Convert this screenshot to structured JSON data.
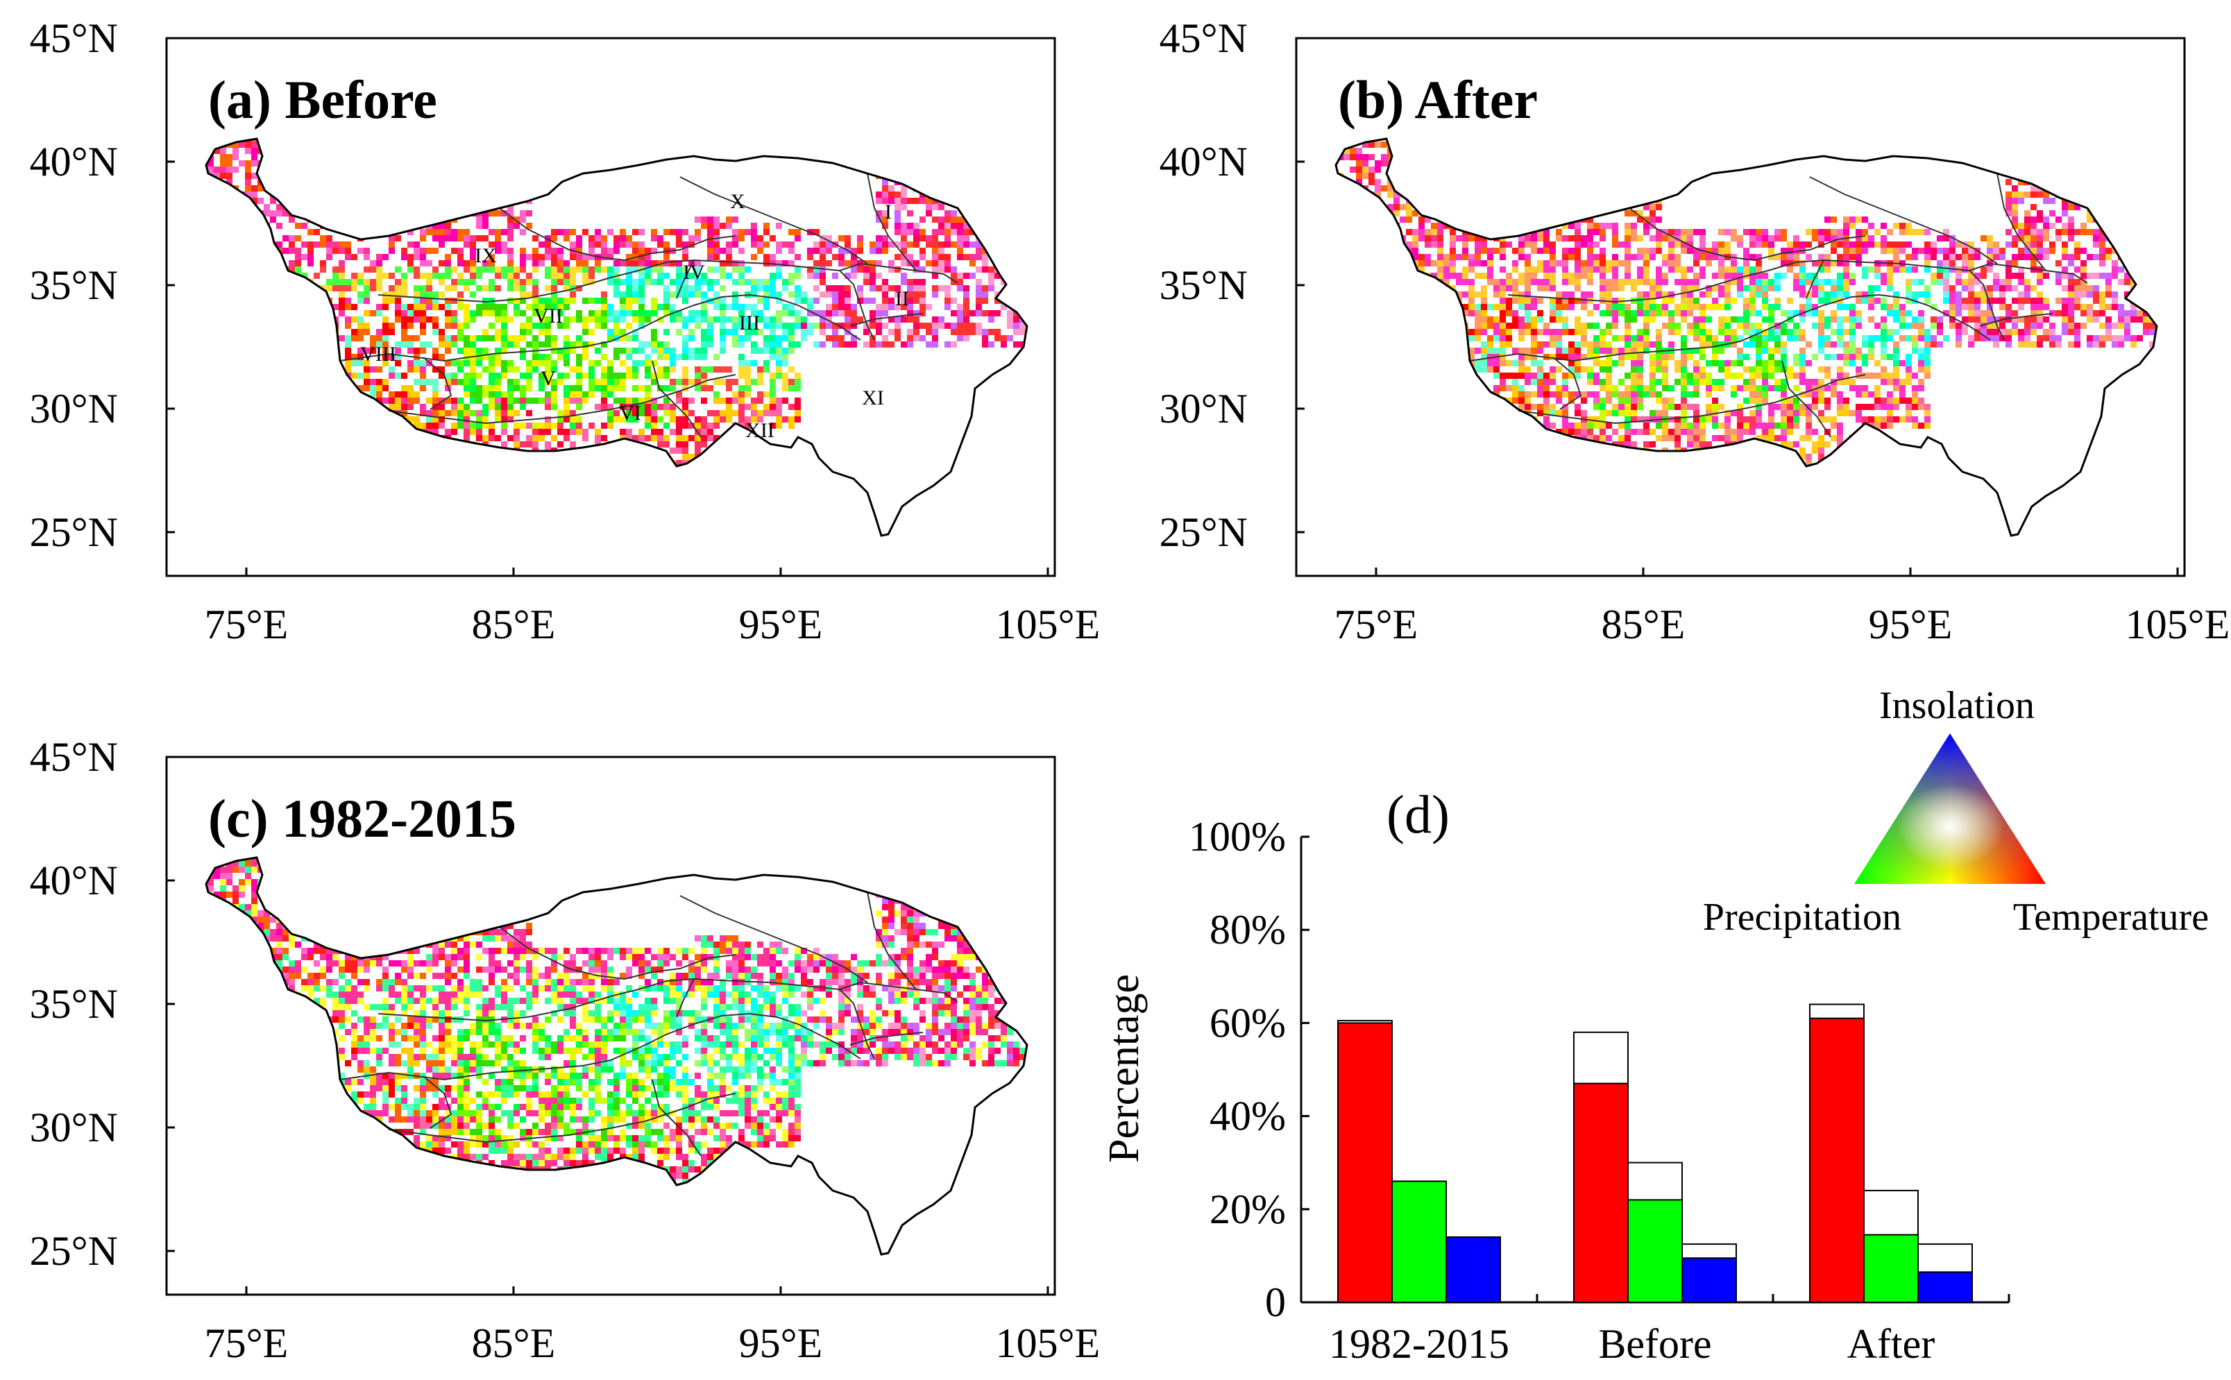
{
  "maps": [
    {
      "title": "(a) Before",
      "show_region_labels": true,
      "density": 0.62
    },
    {
      "title": "(b) After",
      "show_region_labels": false,
      "density": 0.66
    },
    {
      "title": "(c) 1982-2015",
      "show_region_labels": false,
      "density": 0.7
    }
  ],
  "map_axes": {
    "lat_ticks": [
      "45°N",
      "40°N",
      "35°N",
      "30°N",
      "25°N"
    ],
    "lon_ticks": [
      "75°E",
      "85°E",
      "95°E",
      "105°E"
    ]
  },
  "region_labels": [
    "I",
    "II",
    "III",
    "IV",
    "V",
    "VI",
    "VII",
    "VIII",
    "IX",
    "X",
    "XI",
    "XII"
  ],
  "legend": {
    "top": "Insolation",
    "left": "Precipitation",
    "right": "Temperature",
    "colors": {
      "temperature": "#ff0000",
      "precipitation": "#00ff00",
      "insolation": "#0000ff"
    }
  },
  "chart_data": {
    "type": "bar",
    "title": "(d)",
    "ylabel": "Percentage",
    "ylim": [
      0,
      100
    ],
    "yticks": [
      "0",
      "20%",
      "40%",
      "60%",
      "80%",
      "100%"
    ],
    "categories": [
      "1982-2015",
      "Before",
      "After"
    ],
    "series": [
      {
        "name": "Temperature",
        "color": "#ff0000",
        "values": [
          60,
          47,
          61
        ],
        "outline_totals": [
          60.5,
          58,
          64
        ]
      },
      {
        "name": "Precipitation",
        "color": "#00ff00",
        "values": [
          26,
          22,
          14.5
        ],
        "outline_totals": [
          26,
          30,
          24
        ]
      },
      {
        "name": "Insolation",
        "color": "#0000ff",
        "values": [
          14,
          9.5,
          6.5
        ],
        "outline_totals": [
          14,
          12.5,
          12.5
        ]
      }
    ]
  }
}
